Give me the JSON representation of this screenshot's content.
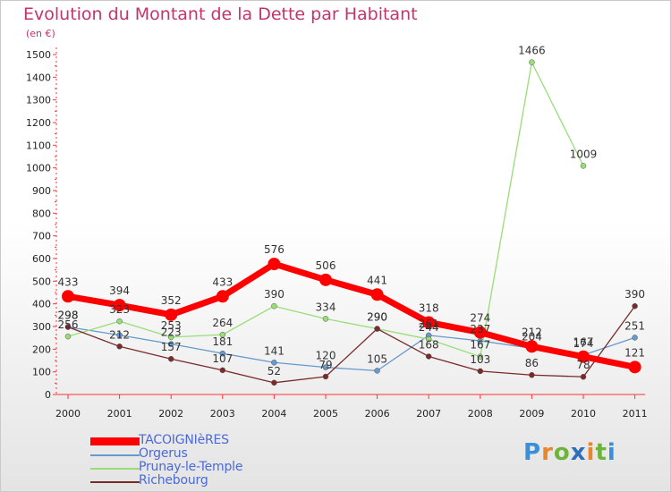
{
  "title": "Evolution du Montant de la Dette par Habitant",
  "subtitle": "(en €)",
  "logo": {
    "text": "Proxiti",
    "colors": [
      "#3a8fd6",
      "#e8862c",
      "#6eb43c",
      "#2e6fb8",
      "#e8862c",
      "#6eb43c",
      "#3a8fd6"
    ]
  },
  "chart_data": {
    "type": "line",
    "x": [
      "2000",
      "2001",
      "2002",
      "2003",
      "2004",
      "2005",
      "2006",
      "2007",
      "2008",
      "2009",
      "2010",
      "2011"
    ],
    "ylim": [
      0,
      1500
    ],
    "yticks": [
      0,
      100,
      200,
      300,
      400,
      500,
      600,
      700,
      800,
      900,
      1000,
      1100,
      1200,
      1300,
      1400,
      1500
    ],
    "grid": false,
    "legend": "bottom-left",
    "series": [
      {
        "name": "TACOIGNIèRES",
        "color": "#ff0000",
        "width": 7,
        "marker": 7,
        "values": [
          433,
          394,
          352,
          433,
          576,
          506,
          441,
          318,
          274,
          212,
          167,
          121
        ]
      },
      {
        "name": "Orgerus",
        "color": "#6699cc",
        "width": 1.3,
        "marker": 3,
        "values": [
          298,
          262,
          223,
          181,
          141,
          120,
          105,
          261,
          237,
          204,
          174,
          251
        ]
      },
      {
        "name": "Prunay-le-Temple",
        "color": "#99dd77",
        "width": 1.3,
        "marker": 3,
        "values": [
          256,
          323,
          253,
          264,
          390,
          334,
          290,
          244,
          167,
          1466,
          1009,
          null
        ]
      },
      {
        "name": "Richebourg",
        "color": "#7a2a2a",
        "width": 1.3,
        "marker": 3,
        "values": [
          298,
          212,
          157,
          107,
          52,
          79,
          290,
          168,
          103,
          86,
          78,
          390
        ]
      }
    ],
    "data_labels": [
      {
        "x": "2000",
        "text": "433",
        "series": 0
      },
      {
        "x": "2001",
        "text": "394",
        "series": 0
      },
      {
        "x": "2002",
        "text": "352",
        "series": 0
      },
      {
        "x": "2003",
        "text": "433",
        "series": 0
      },
      {
        "x": "2004",
        "text": "576",
        "series": 0
      },
      {
        "x": "2005",
        "text": "506",
        "series": 0
      },
      {
        "x": "2006",
        "text": "441",
        "series": 0
      },
      {
        "x": "2007",
        "text": "318",
        "series": 0
      },
      {
        "x": "2008",
        "text": "274",
        "series": 0
      },
      {
        "x": "2009",
        "text": "212",
        "series": 0
      },
      {
        "x": "2010",
        "text": "167",
        "series": 0
      },
      {
        "x": "2011",
        "text": "121",
        "series": 0
      },
      {
        "x": "2000",
        "text": "298",
        "series": 1
      },
      {
        "x": "2000",
        "text": "256",
        "series": 2
      },
      {
        "x": "2000",
        "text": "298",
        "series": 3
      },
      {
        "x": "2001",
        "text": "323",
        "series": 2
      },
      {
        "x": "2001",
        "text": "212",
        "series": 3
      },
      {
        "x": "2002",
        "text": "253",
        "series": 2
      },
      {
        "x": "2002",
        "text": "223",
        "series": 1
      },
      {
        "x": "2002",
        "text": "157",
        "series": 3
      },
      {
        "x": "2003",
        "text": "264",
        "series": 2
      },
      {
        "x": "2003",
        "text": "181",
        "series": 1
      },
      {
        "x": "2003",
        "text": "107",
        "series": 3
      },
      {
        "x": "2004",
        "text": "390",
        "series": 2
      },
      {
        "x": "2004",
        "text": "141",
        "series": 1
      },
      {
        "x": "2004",
        "text": "52",
        "series": 3
      },
      {
        "x": "2005",
        "text": "334",
        "series": 2
      },
      {
        "x": "2005",
        "text": "120",
        "series": 1
      },
      {
        "x": "2005",
        "text": "79",
        "series": 3
      },
      {
        "x": "2006",
        "text": "290",
        "series": 3
      },
      {
        "x": "2006",
        "text": "290",
        "series": 2
      },
      {
        "x": "2006",
        "text": "105",
        "series": 1
      },
      {
        "x": "2007",
        "text": "261",
        "series": 1
      },
      {
        "x": "2007",
        "text": "244",
        "series": 2
      },
      {
        "x": "2007",
        "text": "168",
        "series": 3
      },
      {
        "x": "2008",
        "text": "237",
        "series": 1
      },
      {
        "x": "2008",
        "text": "167",
        "series": 2
      },
      {
        "x": "2008",
        "text": "103",
        "series": 3
      },
      {
        "x": "2009",
        "text": "1466",
        "series": 2
      },
      {
        "x": "2009",
        "text": "204",
        "series": 1
      },
      {
        "x": "2009",
        "text": "86",
        "series": 3
      },
      {
        "x": "2010",
        "text": "1009",
        "series": 2
      },
      {
        "x": "2010",
        "text": "174",
        "series": 1
      },
      {
        "x": "2010",
        "text": "78",
        "series": 3
      },
      {
        "x": "2011",
        "text": "390",
        "series": 3
      },
      {
        "x": "2011",
        "text": "251",
        "series": 1
      }
    ]
  }
}
